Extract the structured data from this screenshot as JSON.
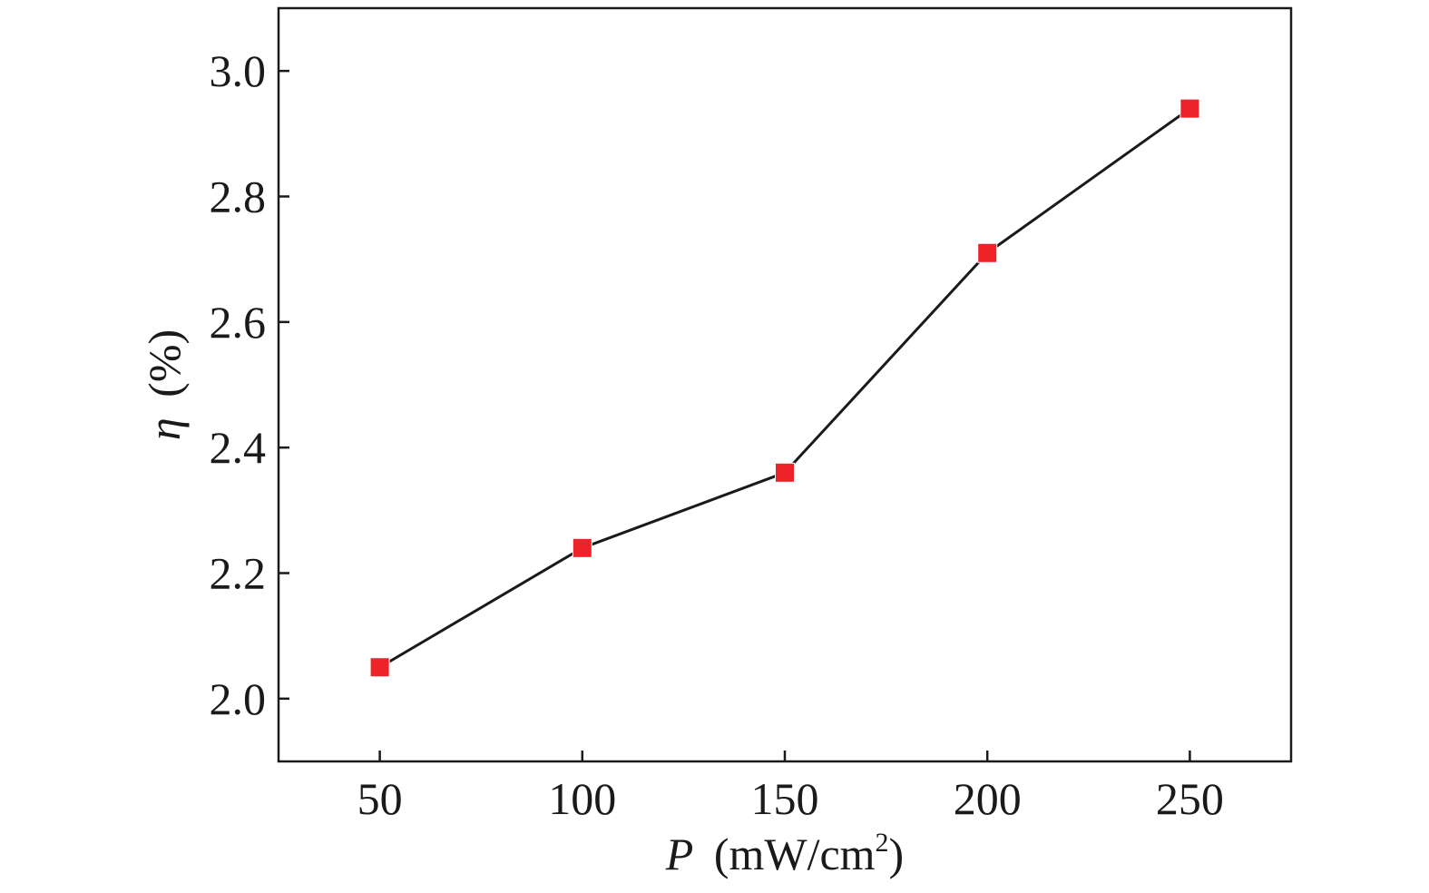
{
  "chart_data": {
    "type": "line",
    "title": "",
    "xlabel": {
      "symbol": "P",
      "unit": "(mW/cm",
      "superscript": "2",
      "close": ")"
    },
    "ylabel": {
      "symbol": "η",
      "unit": "(%)"
    },
    "xlim": [
      25,
      275
    ],
    "ylim": [
      1.9,
      3.1
    ],
    "x_ticks": [
      50,
      100,
      150,
      200,
      250
    ],
    "x_tick_labels": [
      "50",
      "100",
      "150",
      "200",
      "250"
    ],
    "y_ticks": [
      2.0,
      2.2,
      2.4,
      2.6,
      2.8,
      3.0
    ],
    "y_tick_labels": [
      "2.0",
      "2.2",
      "2.4",
      "2.6",
      "2.8",
      "3.0"
    ],
    "grid": false,
    "series": [
      {
        "x": [
          50,
          100,
          150,
          200,
          250
        ],
        "y": [
          2.05,
          2.24,
          2.36,
          2.71,
          2.94
        ],
        "line_color": "#1a1a1a",
        "marker": "square",
        "marker_color": "#ee2229"
      }
    ]
  }
}
